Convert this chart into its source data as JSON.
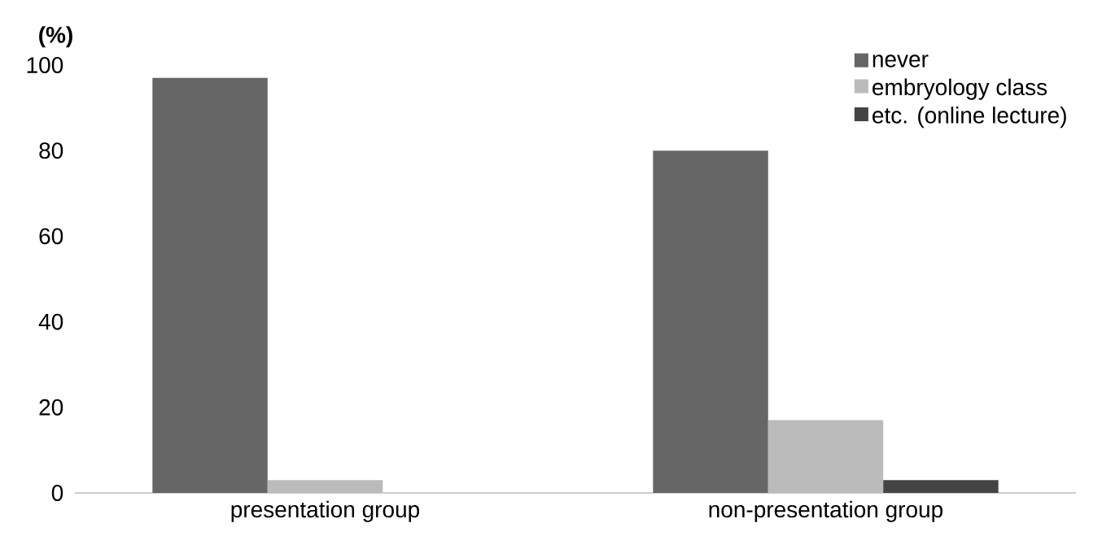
{
  "chart_data": {
    "type": "bar",
    "ylabel": "(%)",
    "categories": [
      "presentation group",
      "non-presentation group"
    ],
    "series": [
      {
        "name": "never",
        "color": "#666666",
        "values": [
          97,
          80
        ]
      },
      {
        "name": "embryology class",
        "color": "#bbbbbb",
        "values": [
          3,
          17
        ]
      },
      {
        "name": "etc. (online lecture)",
        "color": "#444444",
        "values": [
          0,
          3
        ]
      }
    ],
    "ylim": [
      0,
      100
    ],
    "yticks": [
      0,
      20,
      40,
      60,
      80,
      100
    ],
    "grid": false,
    "legend": "top right"
  }
}
